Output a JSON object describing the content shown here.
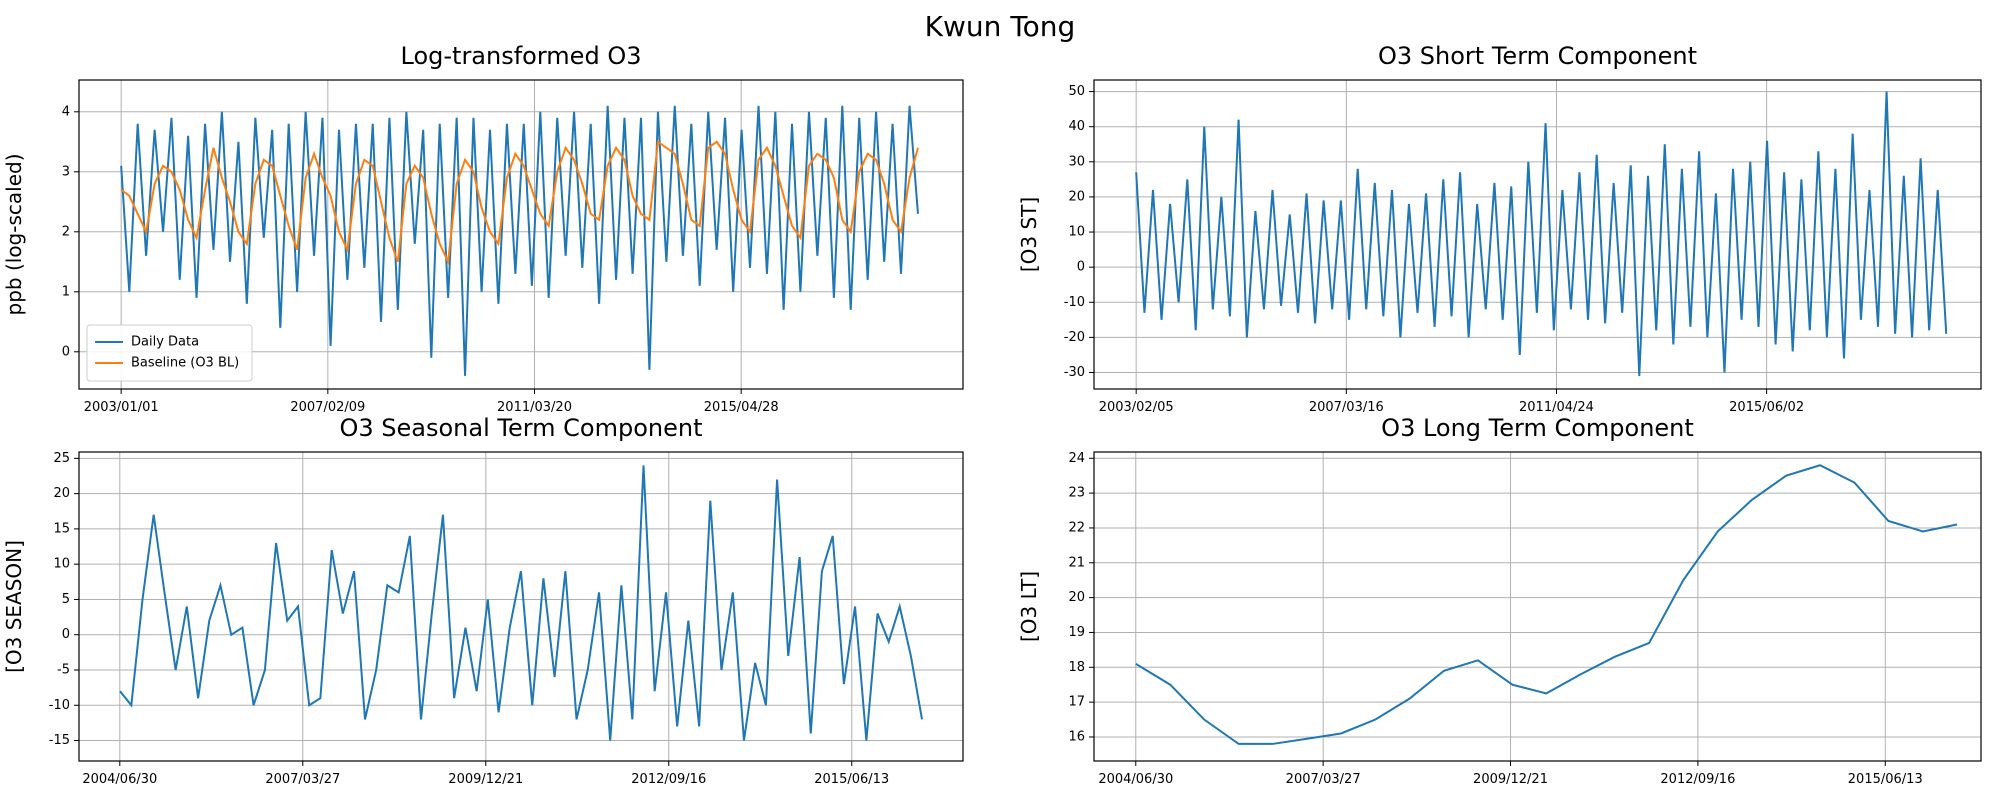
{
  "title": "Kwun Tong",
  "chart_data": [
    {
      "type": "line",
      "title": "Log-transformed O3",
      "ylabel": "ppb (log-scaled)",
      "grid": true,
      "legend": "lower left",
      "x": [
        "2003/01/01",
        "2003/03/01",
        "2003/05/01",
        "2003/07/01",
        "2003/09/01",
        "2003/11/01",
        "2004/01/01",
        "2004/03/01",
        "2004/05/01",
        "2004/07/01",
        "2004/09/01",
        "2004/11/01",
        "2005/01/01",
        "2005/03/01",
        "2005/05/01",
        "2005/07/01",
        "2005/09/01",
        "2005/11/01",
        "2006/01/01",
        "2006/03/01",
        "2006/05/01",
        "2006/07/01",
        "2006/09/01",
        "2006/11/01",
        "2007/01/01",
        "2007/03/01",
        "2007/05/01",
        "2007/07/01",
        "2007/09/01",
        "2007/11/01",
        "2008/01/01",
        "2008/03/01",
        "2008/05/01",
        "2008/07/01",
        "2008/09/01",
        "2008/11/01",
        "2009/01/01",
        "2009/03/01",
        "2009/05/01",
        "2009/07/01",
        "2009/09/01",
        "2009/11/01",
        "2010/01/01",
        "2010/03/01",
        "2010/05/01",
        "2010/07/01",
        "2010/09/01",
        "2010/11/01",
        "2011/01/01",
        "2011/03/01",
        "2011/05/01",
        "2011/07/01",
        "2011/09/01",
        "2011/11/01",
        "2012/01/01",
        "2012/03/01",
        "2012/05/01",
        "2012/07/01",
        "2012/09/01",
        "2012/11/01",
        "2013/01/01",
        "2013/03/01",
        "2013/05/01",
        "2013/07/01",
        "2013/09/01",
        "2013/11/01",
        "2014/01/01",
        "2014/03/01",
        "2014/05/01",
        "2014/07/01",
        "2014/09/01",
        "2014/11/01",
        "2015/01/01",
        "2015/03/01",
        "2015/05/01",
        "2015/07/01",
        "2015/09/01",
        "2015/11/01",
        "2016/01/01",
        "2016/03/01",
        "2016/05/01",
        "2016/07/01",
        "2016/09/01",
        "2016/11/01",
        "2017/01/01",
        "2017/03/01",
        "2017/05/01",
        "2017/07/01",
        "2017/09/01",
        "2017/11/01",
        "2018/01/01",
        "2018/03/01",
        "2018/05/01",
        "2018/07/01",
        "2018/09/01",
        "2018/11/01"
      ],
      "series": [
        {
          "name": "Daily Data",
          "color": "#1f77b4",
          "values": [
            3.1,
            1.0,
            3.8,
            1.6,
            3.7,
            2.0,
            3.9,
            1.2,
            3.6,
            0.9,
            3.8,
            1.7,
            4.0,
            1.5,
            3.5,
            0.8,
            3.9,
            1.9,
            3.7,
            0.4,
            3.8,
            1.0,
            4.0,
            1.6,
            3.9,
            0.1,
            3.7,
            1.2,
            3.8,
            1.4,
            3.8,
            0.5,
            3.9,
            0.7,
            4.0,
            1.8,
            3.7,
            -0.1,
            3.8,
            0.9,
            3.9,
            -0.4,
            3.9,
            1.0,
            3.7,
            0.8,
            3.8,
            1.3,
            3.8,
            1.1,
            4.0,
            0.9,
            3.9,
            1.6,
            4.0,
            1.4,
            3.8,
            0.8,
            4.1,
            1.2,
            3.9,
            1.3,
            3.9,
            -0.3,
            4.0,
            1.5,
            4.1,
            1.6,
            3.8,
            1.1,
            4.0,
            1.7,
            3.9,
            1.0,
            3.7,
            1.4,
            4.1,
            1.3,
            4.0,
            0.7,
            3.8,
            1.0,
            4.0,
            1.6,
            3.9,
            0.9,
            4.1,
            0.7,
            3.9,
            1.2,
            4.0,
            1.5,
            3.8,
            1.3,
            4.1,
            2.3
          ]
        },
        {
          "name": "Baseline (O3 BL)",
          "color": "#ff7f0e",
          "values": [
            2.7,
            2.6,
            2.3,
            2.0,
            2.8,
            3.1,
            3.0,
            2.7,
            2.2,
            1.9,
            2.7,
            3.4,
            2.9,
            2.5,
            2.0,
            1.8,
            2.8,
            3.2,
            3.1,
            2.6,
            2.1,
            1.7,
            2.9,
            3.3,
            2.9,
            2.6,
            2.0,
            1.7,
            2.8,
            3.2,
            3.1,
            2.5,
            1.9,
            1.5,
            2.8,
            3.1,
            2.9,
            2.3,
            1.8,
            1.5,
            2.8,
            3.2,
            3.0,
            2.4,
            2.0,
            1.8,
            2.9,
            3.3,
            3.1,
            2.7,
            2.3,
            2.1,
            3.0,
            3.4,
            3.2,
            2.8,
            2.3,
            2.2,
            3.1,
            3.4,
            3.2,
            2.6,
            2.3,
            2.2,
            3.5,
            3.4,
            3.3,
            2.8,
            2.2,
            2.1,
            3.4,
            3.5,
            3.3,
            2.7,
            2.2,
            2.0,
            3.2,
            3.4,
            3.1,
            2.6,
            2.1,
            1.9,
            3.1,
            3.3,
            3.2,
            2.9,
            2.2,
            2.0,
            3.0,
            3.3,
            3.2,
            2.8,
            2.2,
            2.0,
            2.9,
            3.4
          ]
        }
      ],
      "xlim": [
        "2002/03/01",
        "2019/09/24"
      ],
      "xticks": [
        "2003/01/01",
        "2007/02/09",
        "2011/03/20",
        "2015/04/28"
      ],
      "ylim": [
        -0.62,
        4.53
      ],
      "yticks": [
        0,
        1,
        2,
        3,
        4
      ]
    },
    {
      "type": "line",
      "title": "O3 Short Term Component",
      "ylabel": "[O3 ST]",
      "grid": true,
      "x": [
        "2003/02/05",
        "2003/04/05",
        "2003/06/05",
        "2003/08/05",
        "2003/10/05",
        "2003/12/05",
        "2004/02/05",
        "2004/04/05",
        "2004/06/05",
        "2004/08/05",
        "2004/10/05",
        "2004/12/05",
        "2005/02/05",
        "2005/04/05",
        "2005/06/05",
        "2005/08/05",
        "2005/10/05",
        "2005/12/05",
        "2006/02/05",
        "2006/04/05",
        "2006/06/05",
        "2006/08/05",
        "2006/10/05",
        "2006/12/05",
        "2007/02/05",
        "2007/04/05",
        "2007/06/05",
        "2007/08/05",
        "2007/10/05",
        "2007/12/05",
        "2008/02/05",
        "2008/04/05",
        "2008/06/05",
        "2008/08/05",
        "2008/10/05",
        "2008/12/05",
        "2009/02/05",
        "2009/04/05",
        "2009/06/05",
        "2009/08/05",
        "2009/10/05",
        "2009/12/05",
        "2010/02/05",
        "2010/04/05",
        "2010/06/05",
        "2010/08/05",
        "2010/10/05",
        "2010/12/05",
        "2011/02/05",
        "2011/04/05",
        "2011/06/05",
        "2011/08/05",
        "2011/10/05",
        "2011/12/05",
        "2012/02/05",
        "2012/04/05",
        "2012/06/05",
        "2012/08/05",
        "2012/10/05",
        "2012/12/05",
        "2013/02/05",
        "2013/04/05",
        "2013/06/05",
        "2013/08/05",
        "2013/10/05",
        "2013/12/05",
        "2014/02/05",
        "2014/04/05",
        "2014/06/05",
        "2014/08/05",
        "2014/10/05",
        "2014/12/05",
        "2015/02/05",
        "2015/04/05",
        "2015/06/05",
        "2015/08/05",
        "2015/10/05",
        "2015/12/05",
        "2016/02/05",
        "2016/04/05",
        "2016/06/05",
        "2016/08/05",
        "2016/10/05",
        "2016/12/05",
        "2017/02/05",
        "2017/04/05",
        "2017/06/05",
        "2017/08/05",
        "2017/10/05",
        "2017/12/05",
        "2018/02/05",
        "2018/04/05",
        "2018/06/05",
        "2018/08/05",
        "2018/10/05",
        "2018/12/05"
      ],
      "series": [
        {
          "color": "#1f77b4",
          "values": [
            27,
            -13,
            22,
            -15,
            18,
            -10,
            25,
            -18,
            40,
            -12,
            20,
            -14,
            42,
            -20,
            16,
            -12,
            22,
            -11,
            15,
            -13,
            21,
            -16,
            19,
            -12,
            19,
            -15,
            28,
            -12,
            24,
            -14,
            22,
            -20,
            18,
            -13,
            21,
            -17,
            25,
            -14,
            27,
            -20,
            18,
            -12,
            24,
            -15,
            23,
            -25,
            30,
            -13,
            41,
            -18,
            22,
            -12,
            27,
            -15,
            32,
            -16,
            24,
            -13,
            29,
            -31,
            26,
            -18,
            35,
            -22,
            28,
            -17,
            33,
            -20,
            21,
            -30,
            28,
            -15,
            30,
            -17,
            36,
            -22,
            27,
            -24,
            25,
            -18,
            33,
            -20,
            28,
            -26,
            38,
            -15,
            22,
            -17,
            50,
            -19,
            26,
            -20,
            31,
            -18,
            22,
            -19
          ]
        }
      ],
      "xlim": [
        "2002/04/10",
        "2019/08/10"
      ],
      "xticks": [
        "2003/02/05",
        "2007/03/16",
        "2011/04/24",
        "2015/06/02"
      ],
      "ylim": [
        -34.7,
        53.3
      ],
      "yticks": [
        -30,
        -20,
        -10,
        0,
        10,
        20,
        30,
        40,
        50
      ]
    },
    {
      "type": "line",
      "title": "O3 Seasonal Term Component",
      "ylabel": "[O3 SEASON]",
      "grid": true,
      "x": [
        "2004/07/01",
        "2004/09/01",
        "2004/11/01",
        "2005/01/01",
        "2005/03/01",
        "2005/05/01",
        "2005/07/01",
        "2005/09/01",
        "2005/11/01",
        "2006/01/01",
        "2006/03/01",
        "2006/05/01",
        "2006/07/01",
        "2006/09/01",
        "2006/11/01",
        "2007/01/01",
        "2007/03/01",
        "2007/05/01",
        "2007/07/01",
        "2007/09/01",
        "2007/11/01",
        "2008/01/01",
        "2008/03/01",
        "2008/05/01",
        "2008/07/01",
        "2008/09/01",
        "2008/11/01",
        "2009/01/01",
        "2009/03/01",
        "2009/05/01",
        "2009/07/01",
        "2009/09/01",
        "2009/11/01",
        "2010/01/01",
        "2010/03/01",
        "2010/05/01",
        "2010/07/01",
        "2010/09/01",
        "2010/11/01",
        "2011/01/01",
        "2011/03/01",
        "2011/05/01",
        "2011/07/01",
        "2011/09/01",
        "2011/11/01",
        "2012/01/01",
        "2012/03/01",
        "2012/05/01",
        "2012/07/01",
        "2012/09/01",
        "2012/11/01",
        "2013/01/01",
        "2013/03/01",
        "2013/05/01",
        "2013/07/01",
        "2013/09/01",
        "2013/11/01",
        "2014/01/01",
        "2014/03/01",
        "2014/05/01",
        "2014/07/01",
        "2014/09/01",
        "2014/11/01",
        "2015/01/01",
        "2015/03/01",
        "2015/05/01",
        "2015/07/01",
        "2015/09/01",
        "2015/11/01",
        "2016/01/01",
        "2016/03/01",
        "2016/05/01",
        "2016/07/01"
      ],
      "series": [
        {
          "color": "#1f77b4",
          "values": [
            -8,
            -10,
            5,
            17,
            6,
            -5,
            4,
            -9,
            2,
            7,
            0,
            1,
            -10,
            -5,
            13,
            2,
            4,
            -10,
            -9,
            12,
            3,
            9,
            -12,
            -5,
            7,
            6,
            14,
            -12,
            3,
            17,
            -9,
            1,
            -8,
            5,
            -11,
            1,
            9,
            -10,
            8,
            -6,
            9,
            -12,
            -5,
            6,
            -15,
            7,
            -12,
            24,
            -8,
            6,
            -13,
            2,
            -13,
            19,
            -5,
            6,
            -15,
            -4,
            -10,
            22,
            -3,
            11,
            -14,
            9,
            14,
            -7,
            4,
            -15,
            3,
            -1,
            4,
            -3,
            -12
          ]
        }
      ],
      "xlim": [
        "2003/11/20",
        "2017/02/10"
      ],
      "xticks": [
        "2004/06/30",
        "2007/03/27",
        "2009/12/21",
        "2012/09/16",
        "2015/06/13"
      ],
      "ylim": [
        -17.9,
        25.9
      ],
      "yticks": [
        -15,
        -10,
        -5,
        0,
        5,
        10,
        15,
        20,
        25
      ]
    },
    {
      "type": "line",
      "title": "O3 Long Term Component",
      "ylabel": "[O3 LT]",
      "grid": true,
      "x": [
        "2004/06/30",
        "2004/12/31",
        "2005/06/30",
        "2005/12/31",
        "2006/06/30",
        "2006/12/31",
        "2007/06/30",
        "2007/12/31",
        "2008/06/30",
        "2008/12/31",
        "2009/06/30",
        "2009/12/31",
        "2010/06/30",
        "2010/12/31",
        "2011/06/30",
        "2011/12/31",
        "2012/06/30",
        "2012/12/31",
        "2013/06/30",
        "2013/12/31",
        "2014/06/30",
        "2014/12/31",
        "2015/06/30",
        "2015/12/31",
        "2016/06/30"
      ],
      "series": [
        {
          "color": "#1f77b4",
          "values": [
            18.1,
            17.5,
            16.5,
            15.8,
            15.8,
            15.95,
            16.1,
            16.5,
            17.1,
            17.9,
            18.2,
            17.5,
            17.25,
            17.8,
            18.3,
            18.7,
            20.5,
            21.9,
            22.8,
            23.5,
            23.8,
            23.3,
            22.2,
            21.9,
            22.1
          ]
        }
      ],
      "xlim": [
        "2003/11/20",
        "2016/11/05"
      ],
      "xticks": [
        "2004/06/30",
        "2007/03/27",
        "2009/12/21",
        "2012/09/16",
        "2015/06/13"
      ],
      "ylim": [
        15.31,
        24.18
      ],
      "yticks": [
        16,
        17,
        18,
        19,
        20,
        21,
        22,
        23,
        24
      ]
    }
  ]
}
